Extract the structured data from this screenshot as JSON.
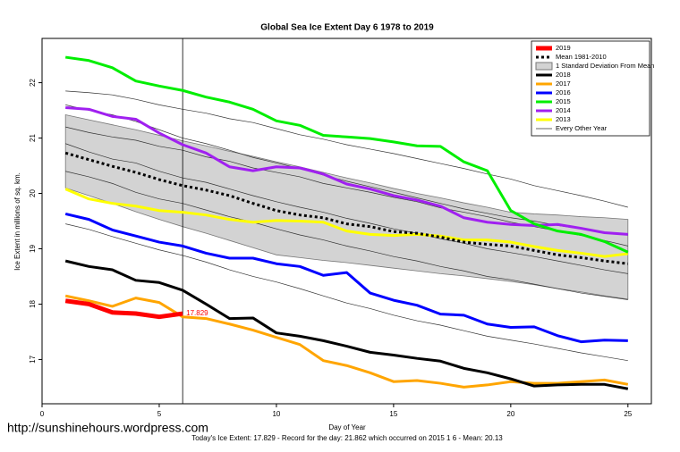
{
  "chart_data": {
    "type": "line",
    "title": "Global Sea Ice Extent Day 6 1978 to 2019",
    "x_label": "Day of Year",
    "y_label": "Ice Extent in millions of sq. km.",
    "x": [
      1,
      2,
      3,
      4,
      5,
      6,
      7,
      8,
      9,
      10,
      11,
      12,
      13,
      14,
      15,
      16,
      17,
      18,
      19,
      20,
      21,
      22,
      23,
      24,
      25
    ],
    "xlim": [
      0,
      26
    ],
    "ylim": [
      16.2,
      22.8
    ],
    "xticks": [
      0,
      5,
      10,
      15,
      20,
      25
    ],
    "yticks": [
      17,
      18,
      19,
      20,
      21,
      22
    ],
    "marker_x": 6,
    "legend_position": "top-right",
    "series": [
      {
        "name": "2019",
        "color": "#ff0000",
        "width": 5,
        "values": [
          18.06,
          18.0,
          17.85,
          17.83,
          17.77,
          17.829,
          null,
          null,
          null,
          null,
          null,
          null,
          null,
          null,
          null,
          null,
          null,
          null,
          null,
          null,
          null,
          null,
          null,
          null,
          null
        ],
        "value_labels": [
          null,
          null,
          null,
          null,
          null,
          "17.829",
          null,
          null,
          null,
          null,
          null,
          null,
          null,
          null,
          null,
          null,
          null,
          null,
          null,
          null,
          null,
          null,
          null,
          null,
          null
        ]
      },
      {
        "name": "Mean 1981-2010",
        "color": "#000000",
        "width": 3,
        "dash": true,
        "values": [
          20.73,
          20.61,
          20.49,
          20.38,
          20.25,
          20.14,
          20.06,
          19.96,
          19.82,
          19.69,
          19.61,
          19.56,
          19.45,
          19.4,
          19.31,
          19.28,
          19.21,
          19.12,
          19.08,
          19.05,
          18.97,
          18.89,
          18.84,
          18.78,
          18.73
        ]
      },
      {
        "name": "2018",
        "color": "#000000",
        "width": 3,
        "values": [
          18.78,
          18.68,
          18.62,
          18.43,
          18.39,
          18.25,
          18.0,
          17.74,
          17.75,
          17.48,
          17.42,
          17.34,
          17.24,
          17.13,
          17.08,
          17.02,
          16.97,
          16.84,
          16.76,
          16.65,
          16.52,
          16.54,
          16.55,
          16.55,
          16.47
        ]
      },
      {
        "name": "2017",
        "color": "#ffa500",
        "width": 3,
        "values": [
          18.15,
          18.06,
          17.96,
          18.11,
          18.03,
          17.77,
          17.74,
          17.64,
          17.53,
          17.4,
          17.27,
          16.98,
          16.89,
          16.76,
          16.6,
          16.62,
          16.57,
          16.5,
          16.54,
          16.6,
          16.57,
          16.57,
          16.6,
          16.63,
          16.55
        ]
      },
      {
        "name": "2016",
        "color": "#0000ff",
        "width": 3,
        "values": [
          19.63,
          19.53,
          19.34,
          19.23,
          19.12,
          19.05,
          18.92,
          18.83,
          18.83,
          18.73,
          18.68,
          18.52,
          18.57,
          18.2,
          18.07,
          17.98,
          17.82,
          17.8,
          17.64,
          17.58,
          17.59,
          17.43,
          17.32,
          17.35,
          17.34
        ]
      },
      {
        "name": "2015",
        "color": "#00ee00",
        "width": 3,
        "values": [
          22.46,
          22.4,
          22.27,
          22.03,
          21.94,
          21.86,
          21.74,
          21.65,
          21.52,
          21.31,
          21.23,
          21.05,
          21.02,
          20.99,
          20.93,
          20.86,
          20.85,
          20.57,
          20.41,
          19.69,
          19.45,
          19.32,
          19.26,
          19.13,
          18.94
        ]
      },
      {
        "name": "2014",
        "color": "#a020f0",
        "width": 3,
        "values": [
          21.55,
          21.52,
          21.39,
          21.34,
          21.09,
          20.88,
          20.73,
          20.48,
          20.41,
          20.48,
          20.46,
          20.35,
          20.17,
          20.08,
          19.96,
          19.88,
          19.77,
          19.56,
          19.48,
          19.44,
          19.42,
          19.44,
          19.37,
          19.29,
          19.26
        ]
      },
      {
        "name": "2013",
        "color": "#ffff00",
        "width": 3,
        "values": [
          20.08,
          19.9,
          19.82,
          19.77,
          19.69,
          19.66,
          19.61,
          19.53,
          19.48,
          19.51,
          19.5,
          19.48,
          19.32,
          19.26,
          19.24,
          19.26,
          19.23,
          19.16,
          19.16,
          19.12,
          19.04,
          18.97,
          18.92,
          18.86,
          18.91
        ]
      }
    ],
    "band": {
      "name": "1 Standard Deviation From Mean",
      "color": "#d3d3d3",
      "upper": [
        21.42,
        21.33,
        21.24,
        21.15,
        21.05,
        20.95,
        20.86,
        20.76,
        20.67,
        20.57,
        20.48,
        20.38,
        20.28,
        20.19,
        20.09,
        20.0,
        19.92,
        19.83,
        19.75,
        19.66,
        19.63,
        19.61,
        19.58,
        19.56,
        19.53
      ],
      "lower": [
        20.1,
        19.96,
        19.82,
        19.67,
        19.53,
        19.4,
        19.28,
        19.15,
        19.02,
        18.89,
        18.84,
        18.79,
        18.75,
        18.7,
        18.65,
        18.6,
        18.55,
        18.51,
        18.46,
        18.41,
        18.35,
        18.28,
        18.22,
        18.15,
        18.09
      ]
    },
    "other_years": {
      "name": "Every Other Year",
      "color": "#333333",
      "lines": [
        [
          21.85,
          21.82,
          21.78,
          21.7,
          21.6,
          21.52,
          21.45,
          21.35,
          21.28,
          21.17,
          21.06,
          20.98,
          20.88,
          20.8,
          20.72,
          20.63,
          20.54,
          20.45,
          20.35,
          20.26,
          20.14,
          20.05,
          19.96,
          19.86,
          19.75
        ],
        [
          21.2,
          21.1,
          21.02,
          20.96,
          20.85,
          20.78,
          20.66,
          20.58,
          20.46,
          20.38,
          20.3,
          20.18,
          20.1,
          20.02,
          19.93,
          19.85,
          19.74,
          19.66,
          19.58,
          19.48,
          19.4,
          19.32,
          19.24,
          19.15,
          19.05
        ],
        [
          20.9,
          20.75,
          20.62,
          20.55,
          20.4,
          20.28,
          20.2,
          20.08,
          19.96,
          19.85,
          19.75,
          19.66,
          19.55,
          19.46,
          19.36,
          19.28,
          19.18,
          19.1,
          19.0,
          18.93,
          18.86,
          18.78,
          18.7,
          18.62,
          18.55
        ],
        [
          20.4,
          20.3,
          20.18,
          20.02,
          19.9,
          19.82,
          19.7,
          19.58,
          19.48,
          19.36,
          19.25,
          19.16,
          19.05,
          18.96,
          18.86,
          18.78,
          18.68,
          18.6,
          18.5,
          18.44,
          18.36,
          18.28,
          18.2,
          18.14,
          18.08
        ],
        [
          19.45,
          19.35,
          19.22,
          19.1,
          18.98,
          18.88,
          18.76,
          18.62,
          18.5,
          18.4,
          18.28,
          18.15,
          18.02,
          17.92,
          17.8,
          17.7,
          17.62,
          17.52,
          17.42,
          17.35,
          17.28,
          17.2,
          17.12,
          17.05,
          16.98
        ],
        [
          21.6,
          21.5,
          21.42,
          21.3,
          21.15,
          21.0,
          20.9,
          20.78,
          20.65,
          20.55,
          20.45,
          20.33,
          20.22,
          20.12,
          20.02,
          19.92,
          19.82,
          19.72,
          19.64,
          19.56,
          19.5,
          19.42,
          19.36,
          19.3,
          19.25
        ]
      ]
    },
    "source": "http://sunshinehours.wordpress.com",
    "footnote": "Today's Ice Extent: 17.829  - Record for the day: 21.862 which occurred on 2015 1 6  - Mean: 20.13"
  }
}
